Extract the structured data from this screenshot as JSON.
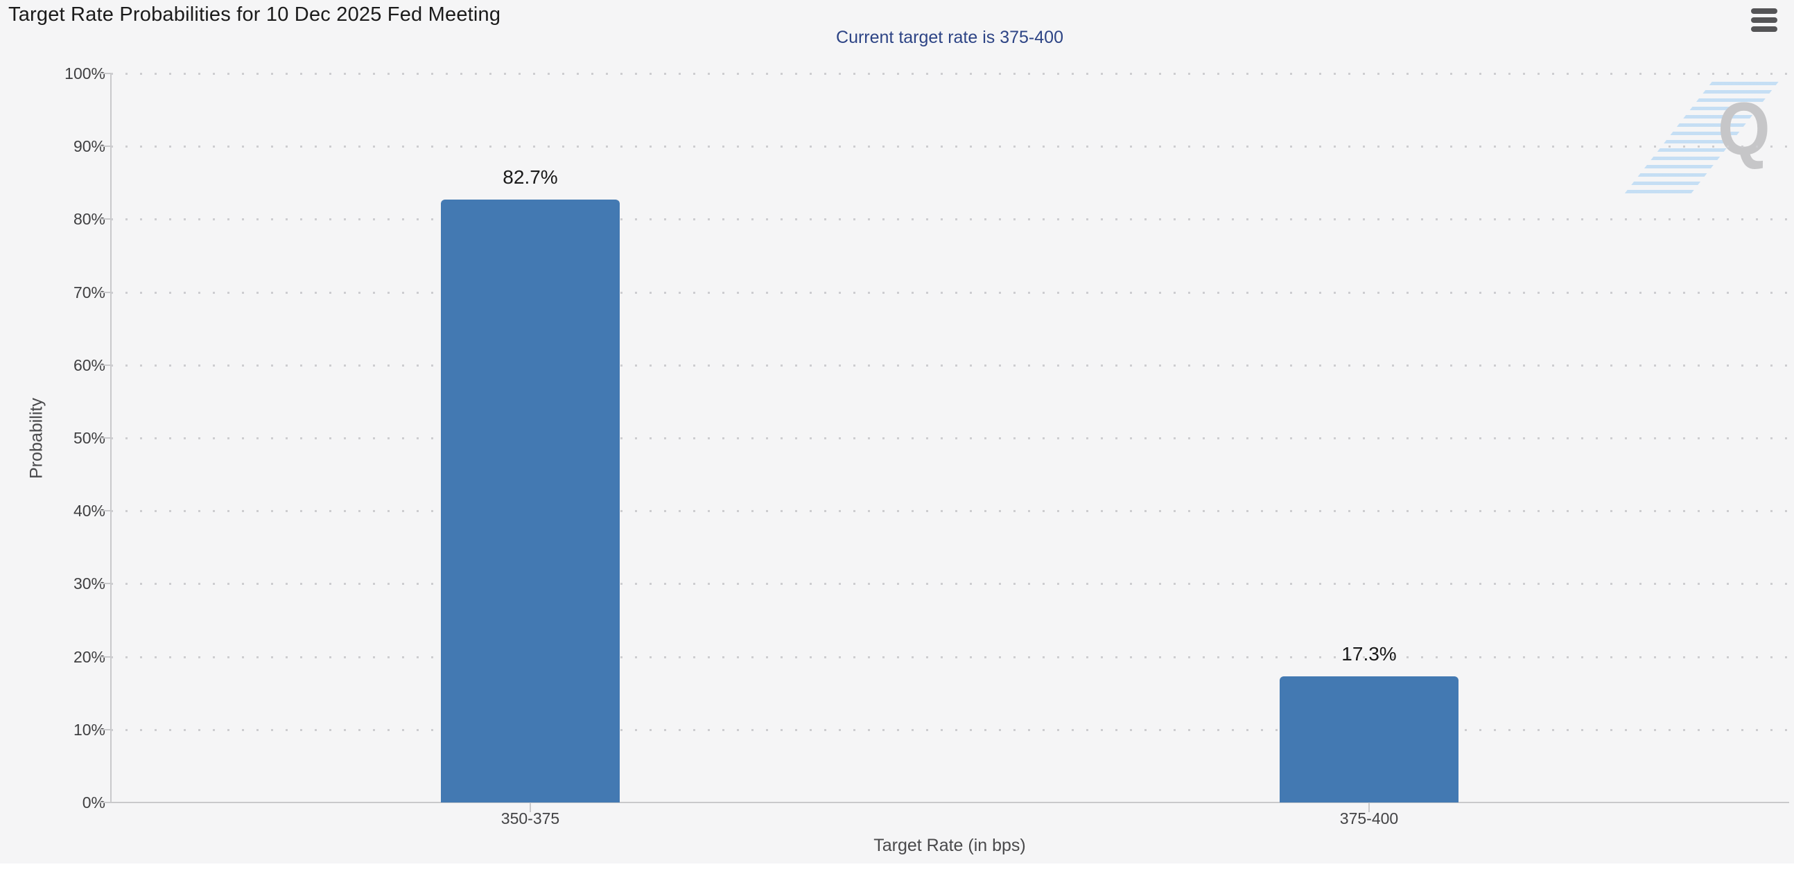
{
  "header": {
    "title": "Target Rate Probabilities for 10 Dec 2025 Fed Meeting",
    "menu_icon": "hamburger-icon"
  },
  "watermark": {
    "letter": "Q"
  },
  "colors": {
    "bar": "#4379b2",
    "subtitle": "#2d4485",
    "background": "#f5f5f6",
    "gridline": "#cdcdd0",
    "watermark_gray": "#c6c6c8",
    "watermark_blue": "#b9d9f3"
  },
  "chart_data": {
    "type": "bar",
    "title": "Current target rate is 375-400",
    "categories": [
      "350-375",
      "375-400"
    ],
    "values": [
      82.7,
      17.3
    ],
    "value_labels": [
      "82.7%",
      "17.3%"
    ],
    "xlabel": "Target Rate (in bps)",
    "ylabel": "Probability",
    "ylim": [
      0,
      100
    ],
    "yticks": [
      "0%",
      "10%",
      "20%",
      "30%",
      "40%",
      "50%",
      "60%",
      "70%",
      "80%",
      "90%",
      "100%"
    ],
    "grid": "dotted-horizontal",
    "legend": "none"
  }
}
